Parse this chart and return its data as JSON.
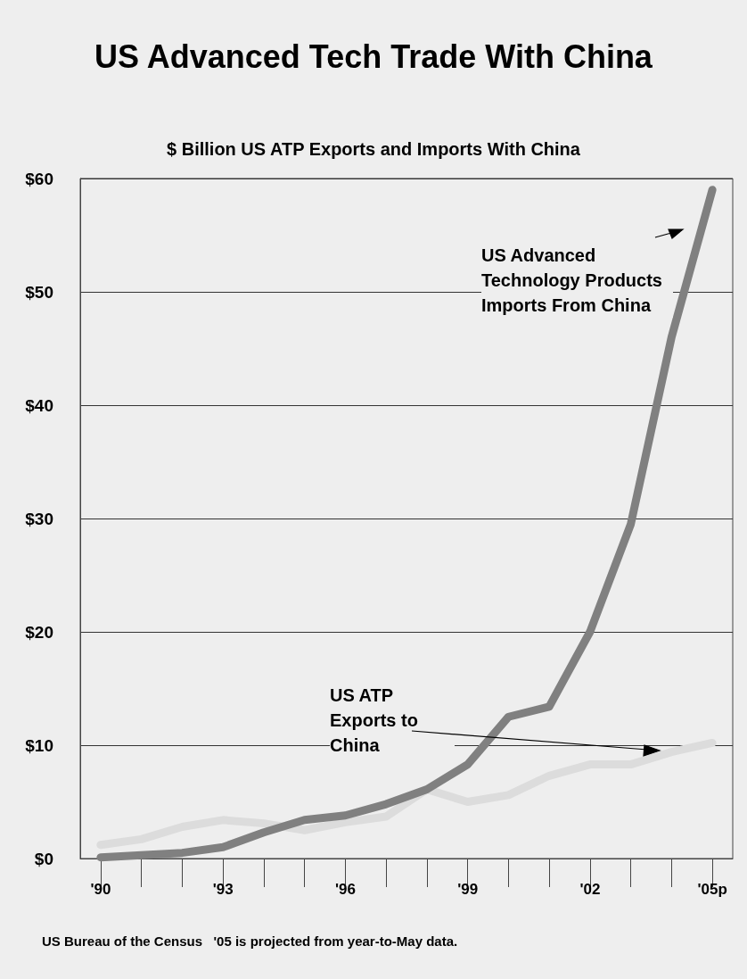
{
  "chart_data": {
    "type": "line",
    "title": "US Advanced Tech Trade With China",
    "subtitle": "$ Billion US ATP Exports and Imports With China",
    "categories": [
      "'90",
      null,
      null,
      "'93",
      null,
      null,
      "'96",
      null,
      null,
      "'99",
      null,
      null,
      "'02",
      null,
      null,
      "'05p"
    ],
    "series": [
      {
        "name": "US ATP Exports to China",
        "color": "#dcdcdc",
        "values": [
          1.2,
          1.7,
          2.8,
          3.4,
          3.1,
          2.5,
          3.2,
          3.7,
          6.1,
          5.0,
          5.6,
          7.3,
          8.3,
          8.3,
          9.4,
          10.2
        ]
      },
      {
        "name": "US Advanced Technology Products Imports From China",
        "color": "#808080",
        "values": [
          0.1,
          0.3,
          0.5,
          1.0,
          2.3,
          3.4,
          3.8,
          4.8,
          6.1,
          8.3,
          12.5,
          13.4,
          20,
          29.5,
          46,
          59
        ]
      }
    ],
    "ylim": [
      0,
      60
    ],
    "yticks": [
      {
        "value": 0,
        "label": "$0"
      },
      {
        "value": 10,
        "label": "$10"
      },
      {
        "value": 20,
        "label": "$20"
      },
      {
        "value": 30,
        "label": "$30"
      },
      {
        "value": 40,
        "label": "$40"
      },
      {
        "value": 50,
        "label": "$50"
      },
      {
        "value": 60,
        "label": "$60"
      }
    ],
    "grid": "y",
    "marker": "none",
    "line_style": "solid",
    "legend": false,
    "annotations": [
      "US Bureau of the Census",
      "'05 is projected from year-to-May data."
    ]
  }
}
